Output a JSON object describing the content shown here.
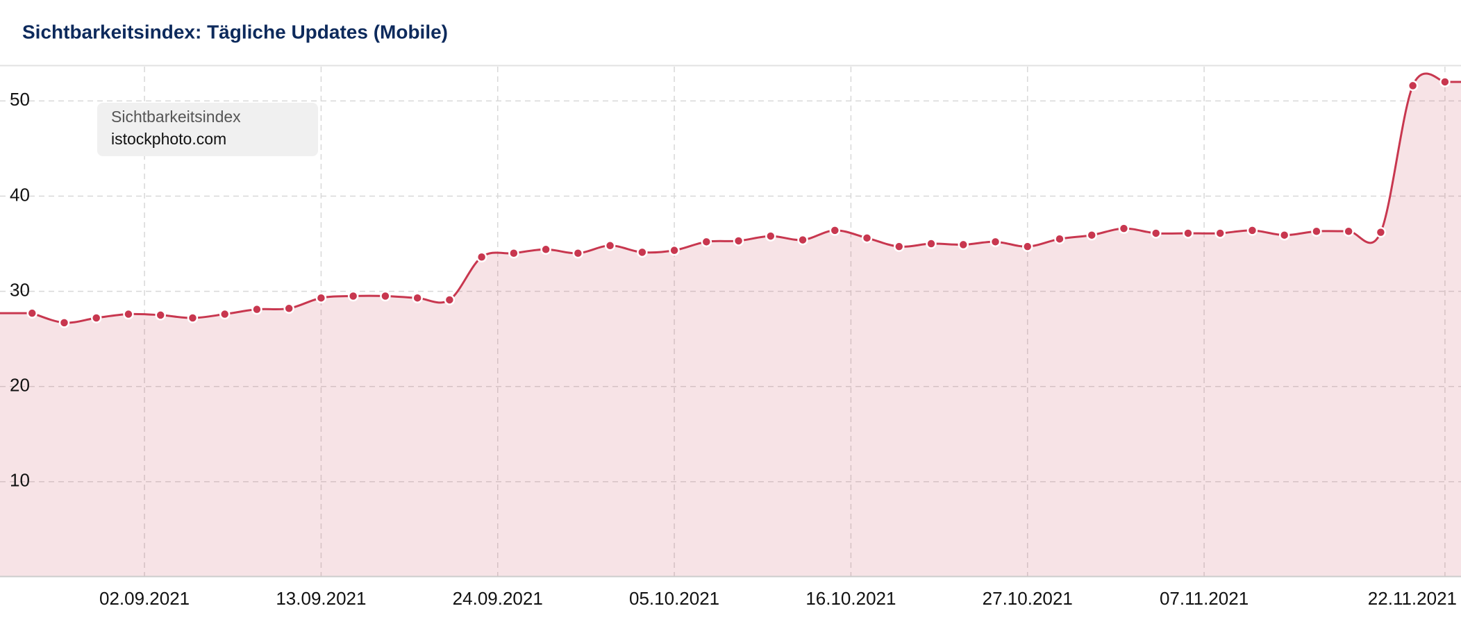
{
  "chart_data": {
    "type": "line",
    "title": "Sichtbarkeitsindex: Tägliche Updates (Mobile)",
    "legend_title": "Sichtbarkeitsindex",
    "x": [
      "2021-08-26",
      "2021-08-28",
      "2021-08-30",
      "2021-09-01",
      "2021-09-03",
      "2021-09-05",
      "2021-09-07",
      "2021-09-09",
      "2021-09-11",
      "2021-09-13",
      "2021-09-15",
      "2021-09-17",
      "2021-09-19",
      "2021-09-21",
      "2021-09-23",
      "2021-09-25",
      "2021-09-27",
      "2021-09-29",
      "2021-10-01",
      "2021-10-03",
      "2021-10-05",
      "2021-10-07",
      "2021-10-09",
      "2021-10-11",
      "2021-10-13",
      "2021-10-15",
      "2021-10-17",
      "2021-10-19",
      "2021-10-21",
      "2021-10-23",
      "2021-10-25",
      "2021-10-27",
      "2021-10-29",
      "2021-10-31",
      "2021-11-02",
      "2021-11-04",
      "2021-11-06",
      "2021-11-08",
      "2021-11-10",
      "2021-11-12",
      "2021-11-14",
      "2021-11-16",
      "2021-11-18",
      "2021-11-20",
      "2021-11-22"
    ],
    "series": [
      {
        "name": "istockphoto.com",
        "color": "#c8374f",
        "values": [
          27.7,
          26.7,
          27.2,
          27.6,
          27.5,
          27.2,
          27.6,
          28.1,
          28.2,
          29.3,
          29.5,
          29.5,
          29.3,
          29.1,
          33.6,
          34.0,
          34.4,
          34.0,
          34.8,
          34.1,
          34.3,
          35.2,
          35.3,
          35.8,
          35.4,
          36.4,
          35.6,
          34.7,
          35.0,
          34.9,
          35.2,
          34.7,
          35.5,
          35.9,
          36.6,
          36.1,
          36.1,
          36.1,
          36.4,
          35.9,
          36.3,
          36.3,
          36.2,
          51.6,
          52.0
        ]
      }
    ],
    "xlim": [
      "2021-08-24",
      "2021-11-23"
    ],
    "xticks": [
      {
        "value": "2021-09-02",
        "label": "02.09.2021"
      },
      {
        "value": "2021-09-13",
        "label": "13.09.2021"
      },
      {
        "value": "2021-09-24",
        "label": "24.09.2021"
      },
      {
        "value": "2021-10-05",
        "label": "05.10.2021"
      },
      {
        "value": "2021-10-16",
        "label": "16.10.2021"
      },
      {
        "value": "2021-10-27",
        "label": "27.10.2021"
      },
      {
        "value": "2021-11-07",
        "label": "07.11.2021"
      },
      {
        "value": "2021-11-22",
        "label": "22.11.2021"
      }
    ],
    "ylim": [
      0,
      53.6
    ],
    "yticks": [
      10,
      20,
      30,
      40,
      50
    ],
    "grid": true
  }
}
